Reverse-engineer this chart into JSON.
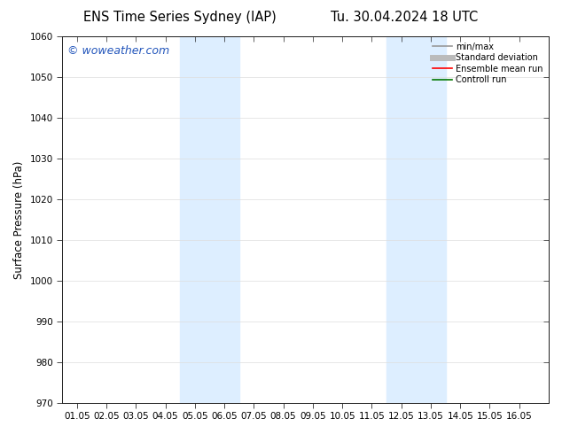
{
  "title_left": "ENS Time Series Sydney (IAP)",
  "title_right": "Tu. 30.04.2024 18 UTC",
  "ylabel": "Surface Pressure (hPa)",
  "xlabel": "",
  "ylim": [
    970,
    1060
  ],
  "yticks": [
    970,
    980,
    990,
    1000,
    1010,
    1020,
    1030,
    1040,
    1050,
    1060
  ],
  "xlim": [
    0.0,
    15.5
  ],
  "xtick_labels": [
    "01.05",
    "02.05",
    "03.05",
    "04.05",
    "05.05",
    "06.05",
    "07.05",
    "08.05",
    "09.05",
    "10.05",
    "11.05",
    "12.05",
    "13.05",
    "14.05",
    "15.05",
    "16.05"
  ],
  "xtick_positions": [
    0,
    1,
    2,
    3,
    4,
    5,
    6,
    7,
    8,
    9,
    10,
    11,
    12,
    13,
    14,
    15
  ],
  "shaded_bands": [
    {
      "x_start": 3.5,
      "x_end": 5.5
    },
    {
      "x_start": 10.5,
      "x_end": 12.5
    }
  ],
  "band_color": "#ddeeff",
  "background_color": "#ffffff",
  "watermark_text": "© woweather.com",
  "watermark_color": "#2255bb",
  "legend_items": [
    {
      "label": "min/max",
      "color": "#999999",
      "lw": 1.2,
      "style": "solid"
    },
    {
      "label": "Standard deviation",
      "color": "#bbbbbb",
      "lw": 5,
      "style": "solid"
    },
    {
      "label": "Ensemble mean run",
      "color": "#ff0000",
      "lw": 1.2,
      "style": "solid"
    },
    {
      "label": "Controll run",
      "color": "#007700",
      "lw": 1.2,
      "style": "solid"
    }
  ],
  "grid_color": "#dddddd",
  "grid_lw": 0.5,
  "title_fontsize": 10.5,
  "tick_fontsize": 7.5,
  "ylabel_fontsize": 8.5,
  "watermark_fontsize": 9
}
